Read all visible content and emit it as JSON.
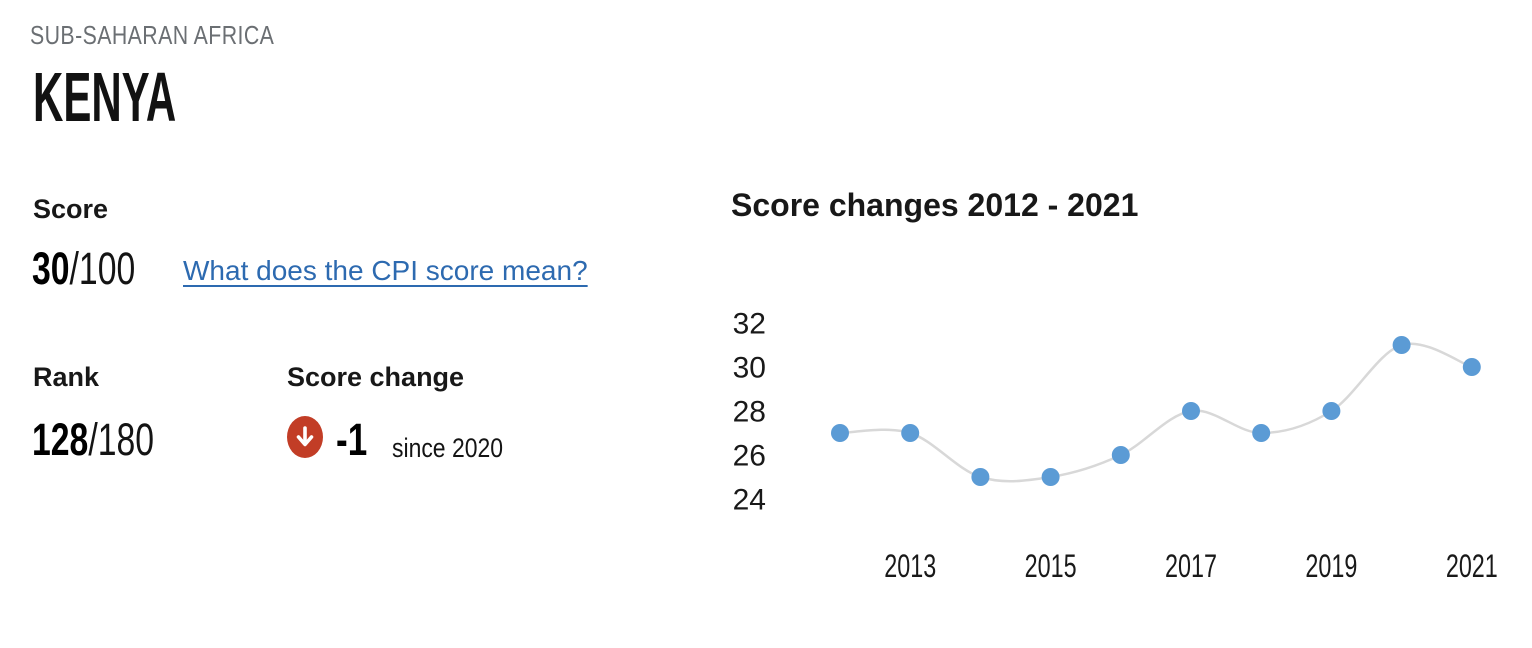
{
  "header": {
    "region": "SUB-SAHARAN AFRICA",
    "country": "KENYA"
  },
  "score": {
    "label": "Score",
    "value": "30",
    "denominator": "/100",
    "link_text": "What does the CPI score mean?",
    "link_color": "#2d6ab0"
  },
  "rank": {
    "label": "Rank",
    "value": "128",
    "denominator": "/180"
  },
  "score_change": {
    "label": "Score change",
    "delta": "-1",
    "caption": "since 2020",
    "direction": "down",
    "badge_color": "#c23d26",
    "arrow_color": "#ffffff"
  },
  "chart_data": {
    "type": "line",
    "title": "Score changes 2012 - 2021",
    "x": [
      2012,
      2013,
      2014,
      2015,
      2016,
      2017,
      2018,
      2019,
      2020,
      2021
    ],
    "values": [
      27,
      27,
      25,
      25,
      26,
      28,
      27,
      28,
      31,
      30
    ],
    "y_ticks": [
      32,
      30,
      28,
      26,
      24
    ],
    "x_tick_labels": [
      "2013",
      "2015",
      "2017",
      "2019",
      "2021"
    ],
    "ylim": [
      23,
      33
    ],
    "grid": false,
    "legend": "none",
    "point_color": "#5b9bd5",
    "line_color": "#d8d8d8",
    "tick_color": "#191919"
  }
}
